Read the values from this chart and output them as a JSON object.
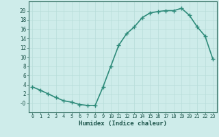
{
  "x": [
    0,
    1,
    2,
    3,
    4,
    5,
    6,
    7,
    8,
    9,
    10,
    11,
    12,
    13,
    14,
    15,
    16,
    17,
    18,
    19,
    20,
    21,
    22,
    23
  ],
  "y": [
    3.5,
    2.8,
    2.0,
    1.2,
    0.5,
    0.2,
    -0.3,
    -0.5,
    -0.5,
    3.5,
    8.0,
    12.5,
    15.0,
    16.5,
    18.5,
    19.5,
    19.8,
    20.0,
    20.0,
    20.5,
    19.0,
    16.5,
    14.5,
    9.5
  ],
  "xlabel": "Humidex (Indice chaleur)",
  "ylabel": "",
  "xlim": [
    -0.5,
    23.5
  ],
  "ylim": [
    -2,
    22
  ],
  "yticks": [
    0,
    2,
    4,
    6,
    8,
    10,
    12,
    14,
    16,
    18,
    20
  ],
  "ytick_labels": [
    "-0",
    "2",
    "4",
    "6",
    "8",
    "10",
    "12",
    "14",
    "16",
    "18",
    "20"
  ],
  "xticks": [
    0,
    1,
    2,
    3,
    4,
    5,
    6,
    7,
    8,
    9,
    10,
    11,
    12,
    13,
    14,
    15,
    16,
    17,
    18,
    19,
    20,
    21,
    22,
    23
  ],
  "line_color": "#2e8b7a",
  "marker": "+",
  "bg_color": "#ceecea",
  "grid_color": "#b8ddd9",
  "axis_color": "#2e6b5e",
  "tick_label_color": "#1a5248",
  "xlabel_color": "#1a5248",
  "marker_color": "#2e8b7a",
  "linewidth": 1.2,
  "markersize": 4
}
